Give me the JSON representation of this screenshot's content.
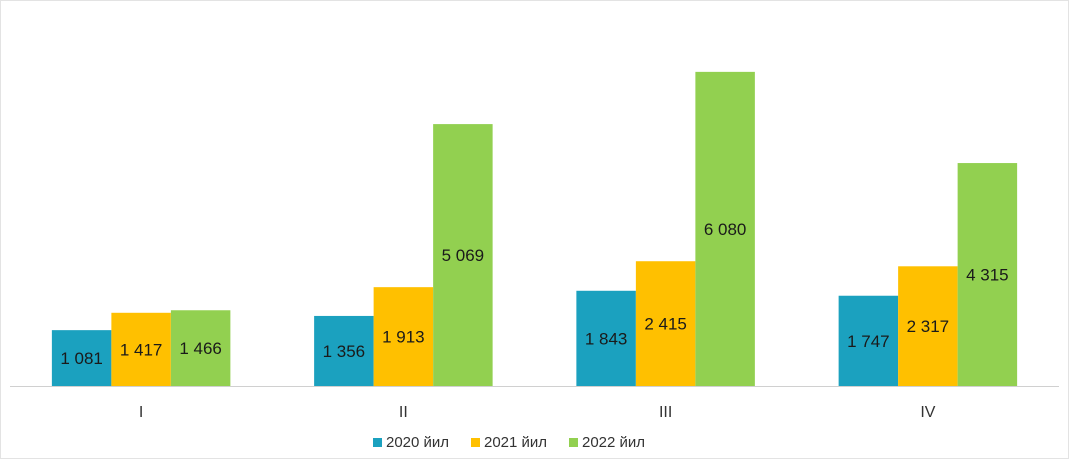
{
  "chart_data": {
    "type": "bar",
    "title": "",
    "xlabel": "",
    "ylabel": "",
    "categories": [
      "I",
      "II",
      "III",
      "IV"
    ],
    "series": [
      {
        "name": "2020 йил",
        "color": "#1ba1bf",
        "values": [
          1081,
          1356,
          1843,
          1747
        ],
        "labels": [
          "1 081",
          "1 356",
          "1 843",
          "1 747"
        ]
      },
      {
        "name": "2021 йил",
        "color": "#ffc000",
        "values": [
          1417,
          1913,
          2415,
          2317
        ],
        "labels": [
          "1 417",
          "1 913",
          "2 415",
          "2 317"
        ]
      },
      {
        "name": "2022 йил",
        "color": "#92d050",
        "values": [
          1466,
          5069,
          6080,
          4315
        ],
        "labels": [
          "1 466",
          "5 069",
          "6 080",
          "4 315"
        ]
      }
    ],
    "ylim": [
      0,
      7200
    ],
    "grid": false,
    "legend_position": "bottom"
  }
}
